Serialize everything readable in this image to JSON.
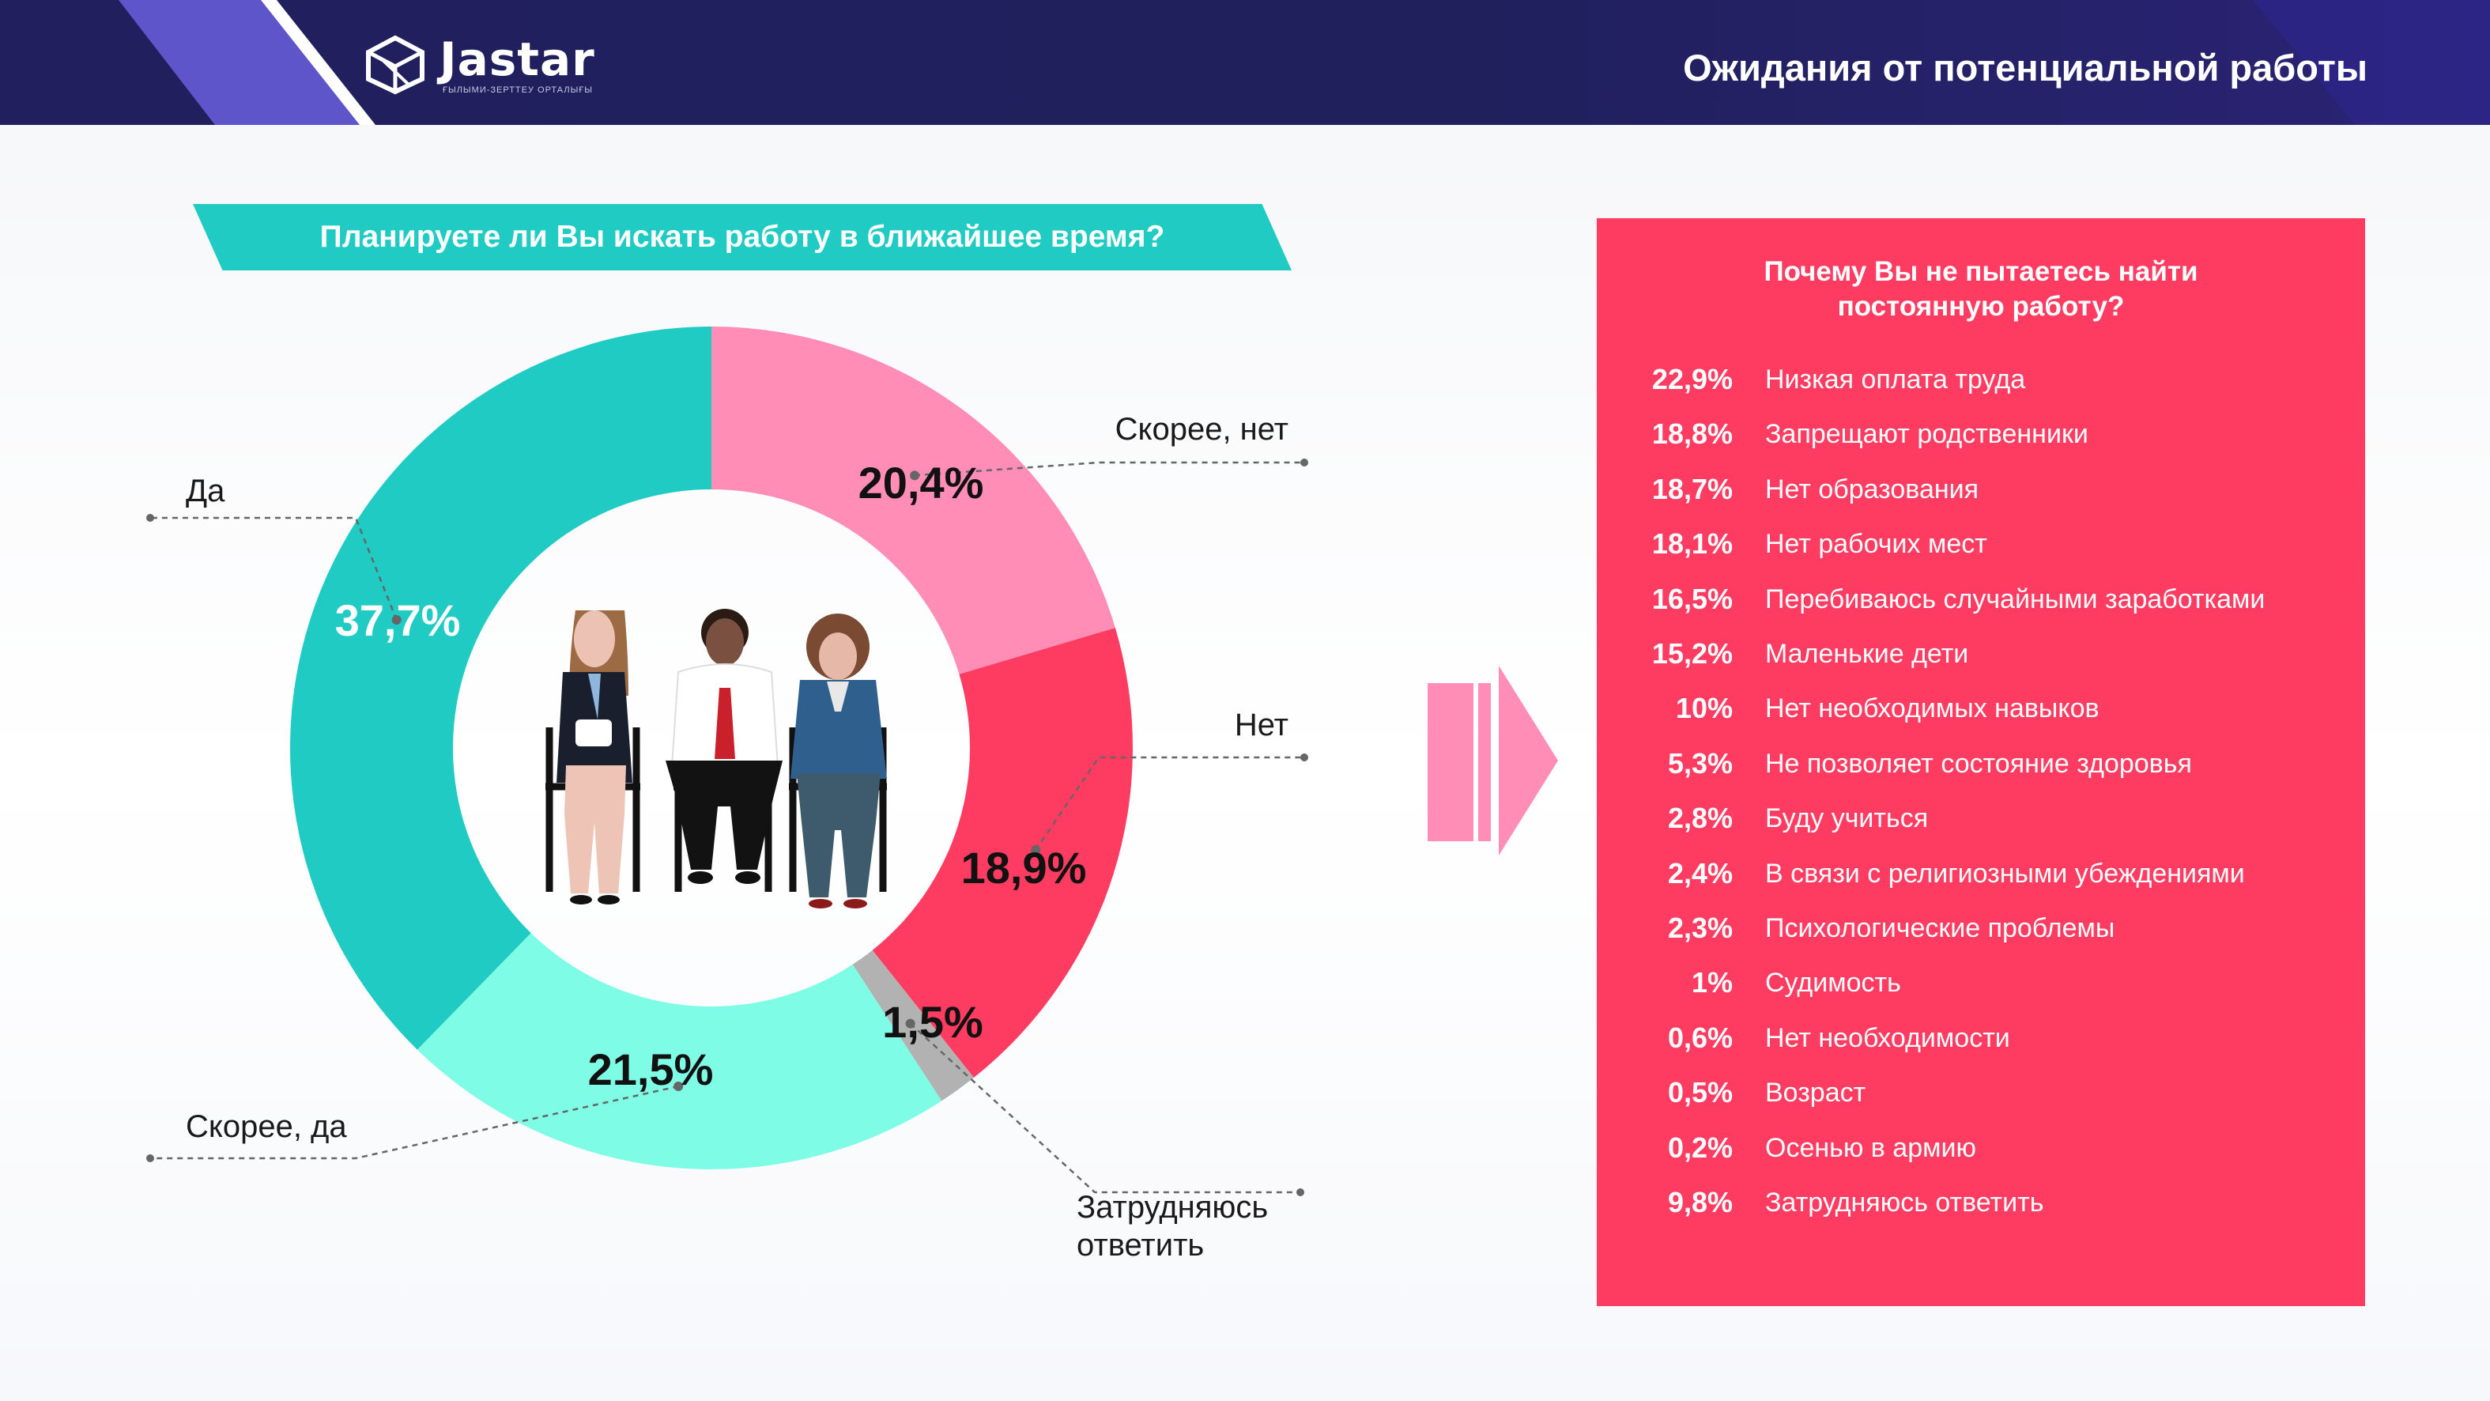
{
  "header": {
    "logo_text": "Jastar",
    "logo_subtitle": "ҒЫЛЫМИ-ЗЕРТТЕУ ОРТАЛЫҒЫ",
    "title": "Ожидания от потенциальной работы"
  },
  "question": "Планируете ли Вы искать работу в ближайшее время?",
  "colors": {
    "header": "#211f5e",
    "teal": "#1fcbc3",
    "light_teal": "#7ffce6",
    "pink": "#ff8db5",
    "red": "#fe3c61",
    "grey": "#b2b2b2",
    "panel": "#fe3c61"
  },
  "chart_data": [
    {
      "type": "pie",
      "donut": true,
      "categories": [
        "Скорее, нет",
        "Нет",
        "Затрудняюсь ответить",
        "Скорее, да",
        "Да"
      ],
      "values": [
        20.4,
        18.9,
        1.5,
        21.5,
        37.7
      ],
      "value_labels": [
        "20,4%",
        "18,9%",
        "1,5%",
        "21,5%",
        "37,7%"
      ],
      "colors": [
        "#ff8db5",
        "#fe3c61",
        "#b2b2b2",
        "#7ffce6",
        "#1fcbc3"
      ],
      "unit": "%"
    },
    {
      "type": "table",
      "title": "Почему Вы не пытаетесь найти постоянную работу?",
      "title_lines": [
        "Почему Вы не пытаетесь найти",
        "постоянную работу?"
      ],
      "rows": [
        {
          "value": "22,9%",
          "label": "Низкая оплата труда"
        },
        {
          "value": "18,8%",
          "label": "Запрещают родственники"
        },
        {
          "value": "18,7%",
          "label": "Нет образования"
        },
        {
          "value": "18,1%",
          "label": "Нет рабочих мест"
        },
        {
          "value": "16,5%",
          "label": "Перебиваюсь случайными заработками"
        },
        {
          "value": "15,2%",
          "label": "Маленькие дети"
        },
        {
          "value": "10%",
          "label": "Нет необходимых навыков"
        },
        {
          "value": "5,3%",
          "label": "Не позволяет состояние здоровья"
        },
        {
          "value": "2,8%",
          "label": "Буду учиться"
        },
        {
          "value": "2,4%",
          "label": "В связи с религиозными убеждениями"
        },
        {
          "value": "2,3%",
          "label": "Психологические проблемы"
        },
        {
          "value": "1%",
          "label": "Судимость"
        },
        {
          "value": "0,6%",
          "label": "Нет необходимости"
        },
        {
          "value": "0,5%",
          "label": "Возраст"
        },
        {
          "value": "0,2%",
          "label": "Осенью в армию"
        },
        {
          "value": "9,8%",
          "label": "Затрудняюсь ответить"
        }
      ]
    }
  ]
}
